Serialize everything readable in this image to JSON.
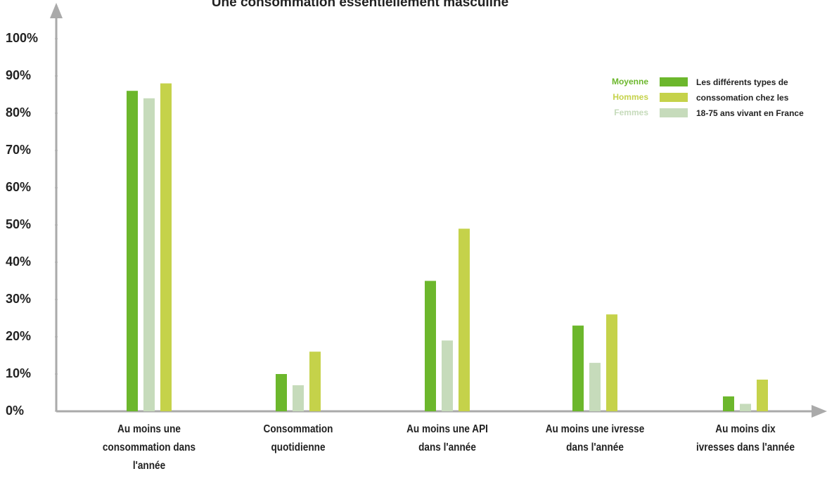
{
  "chart_data": {
    "type": "bar",
    "title": "Une consommation essentiellement masculine",
    "categories": [
      "Au moins une\nconsommation dans\nl'année",
      "Consommation\nquotidienne",
      "Au moins une API\ndans l'année",
      "Au moins une ivresse\ndans l'année",
      "Au moins dix\nivresses dans l'année"
    ],
    "series": [
      {
        "name": "Moyenne",
        "color": "#6cb72c",
        "values": [
          86,
          10,
          35,
          23,
          4
        ]
      },
      {
        "name": "Femmes",
        "color": "#c6dbbb",
        "values": [
          84,
          7,
          19,
          13,
          2
        ]
      },
      {
        "name": "Hommes",
        "color": "#c5d24a",
        "values": [
          88,
          16,
          49,
          26,
          8.5
        ]
      }
    ],
    "legend_order": [
      0,
      2,
      1
    ],
    "legend_note": [
      "Les différents types de",
      "conssomation chez les",
      "18-75 ans vivant en France"
    ],
    "ylim": [
      0,
      100
    ],
    "yticks": [
      {
        "value": 0,
        "label": "0%"
      },
      {
        "value": 10,
        "label": "10%"
      },
      {
        "value": 20,
        "label": "20%"
      },
      {
        "value": 30,
        "label": "30%"
      },
      {
        "value": 40,
        "label": "40%"
      },
      {
        "value": 50,
        "label": "50%"
      },
      {
        "value": 60,
        "label": "60%"
      },
      {
        "value": 70,
        "label": "70%"
      },
      {
        "value": 80,
        "label": "80%"
      },
      {
        "value": 90,
        "label": "90%"
      },
      {
        "value": 100,
        "label": "100%"
      }
    ],
    "grid": false
  }
}
